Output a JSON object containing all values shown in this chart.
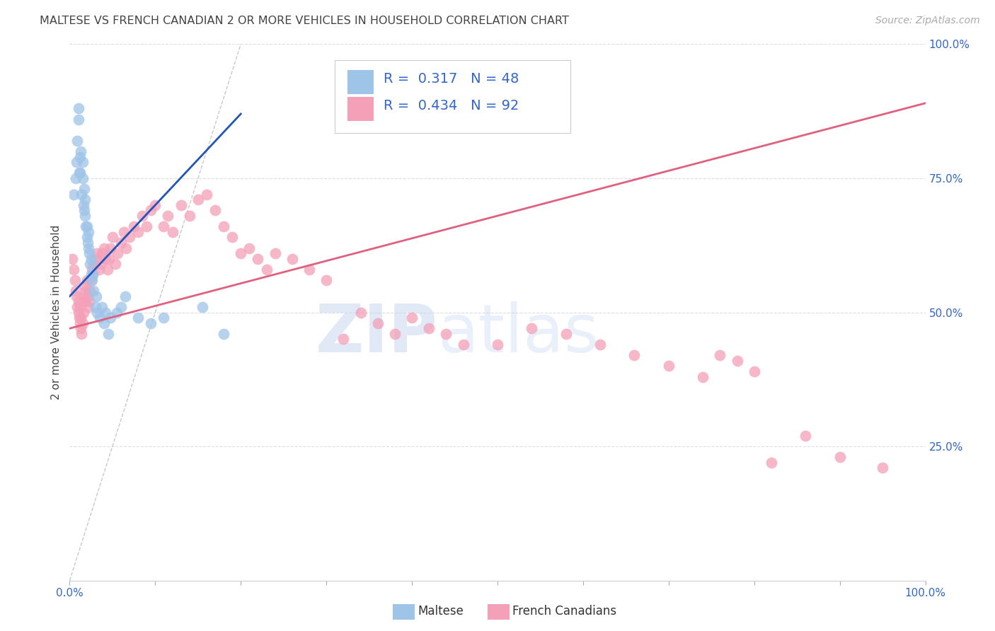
{
  "title": "MALTESE VS FRENCH CANADIAN 2 OR MORE VEHICLES IN HOUSEHOLD CORRELATION CHART",
  "source": "Source: ZipAtlas.com",
  "ylabel": "2 or more Vehicles in Household",
  "xlim": [
    0,
    1
  ],
  "ylim": [
    0,
    1
  ],
  "maltese_R": "0.317",
  "maltese_N": "48",
  "french_R": "0.434",
  "french_N": "92",
  "maltese_color": "#9ec4e8",
  "french_color": "#f4a0b8",
  "maltese_line_color": "#2255bb",
  "french_line_color": "#e06080",
  "diag_line_color": "#bbbbbb",
  "background_color": "#ffffff",
  "grid_color": "#dddddd",
  "title_color": "#333333",
  "source_color": "#aaaaaa",
  "axis_label_color": "#3366cc",
  "watermark_zip": "ZIP",
  "watermark_atlas": "atlas",
  "maltese_x": [
    0.005,
    0.007,
    0.008,
    0.009,
    0.01,
    0.01,
    0.011,
    0.012,
    0.012,
    0.013,
    0.014,
    0.015,
    0.015,
    0.016,
    0.017,
    0.017,
    0.018,
    0.018,
    0.019,
    0.02,
    0.02,
    0.021,
    0.022,
    0.022,
    0.023,
    0.024,
    0.025,
    0.025,
    0.026,
    0.027,
    0.028,
    0.03,
    0.031,
    0.032,
    0.035,
    0.038,
    0.04,
    0.042,
    0.045,
    0.048,
    0.055,
    0.06,
    0.065,
    0.08,
    0.095,
    0.11,
    0.155,
    0.18
  ],
  "maltese_y": [
    0.72,
    0.75,
    0.78,
    0.82,
    0.86,
    0.88,
    0.76,
    0.79,
    0.76,
    0.8,
    0.72,
    0.75,
    0.78,
    0.7,
    0.73,
    0.69,
    0.68,
    0.71,
    0.66,
    0.64,
    0.66,
    0.63,
    0.65,
    0.62,
    0.61,
    0.59,
    0.57,
    0.6,
    0.56,
    0.57,
    0.54,
    0.51,
    0.53,
    0.5,
    0.49,
    0.51,
    0.48,
    0.5,
    0.46,
    0.49,
    0.5,
    0.51,
    0.53,
    0.49,
    0.48,
    0.49,
    0.51,
    0.46
  ],
  "french_x": [
    0.003,
    0.005,
    0.006,
    0.007,
    0.008,
    0.009,
    0.01,
    0.01,
    0.011,
    0.012,
    0.012,
    0.013,
    0.013,
    0.014,
    0.015,
    0.016,
    0.017,
    0.018,
    0.018,
    0.019,
    0.02,
    0.021,
    0.022,
    0.023,
    0.024,
    0.025,
    0.026,
    0.027,
    0.028,
    0.03,
    0.032,
    0.034,
    0.036,
    0.038,
    0.04,
    0.042,
    0.044,
    0.046,
    0.048,
    0.05,
    0.053,
    0.056,
    0.06,
    0.063,
    0.066,
    0.07,
    0.075,
    0.08,
    0.085,
    0.09,
    0.095,
    0.1,
    0.11,
    0.115,
    0.12,
    0.13,
    0.14,
    0.15,
    0.16,
    0.17,
    0.18,
    0.19,
    0.2,
    0.21,
    0.22,
    0.23,
    0.24,
    0.26,
    0.28,
    0.3,
    0.32,
    0.34,
    0.36,
    0.38,
    0.4,
    0.42,
    0.44,
    0.46,
    0.5,
    0.54,
    0.58,
    0.62,
    0.66,
    0.7,
    0.74,
    0.76,
    0.78,
    0.8,
    0.82,
    0.86,
    0.9,
    0.95
  ],
  "french_y": [
    0.6,
    0.58,
    0.56,
    0.54,
    0.53,
    0.51,
    0.5,
    0.52,
    0.49,
    0.51,
    0.48,
    0.47,
    0.49,
    0.46,
    0.48,
    0.5,
    0.53,
    0.55,
    0.52,
    0.54,
    0.56,
    0.53,
    0.51,
    0.52,
    0.54,
    0.56,
    0.58,
    0.57,
    0.59,
    0.6,
    0.61,
    0.58,
    0.59,
    0.61,
    0.62,
    0.6,
    0.58,
    0.6,
    0.62,
    0.64,
    0.59,
    0.61,
    0.63,
    0.65,
    0.62,
    0.64,
    0.66,
    0.65,
    0.68,
    0.66,
    0.69,
    0.7,
    0.66,
    0.68,
    0.65,
    0.7,
    0.68,
    0.71,
    0.72,
    0.69,
    0.66,
    0.64,
    0.61,
    0.62,
    0.6,
    0.58,
    0.61,
    0.6,
    0.58,
    0.56,
    0.45,
    0.5,
    0.48,
    0.46,
    0.49,
    0.47,
    0.46,
    0.44,
    0.44,
    0.47,
    0.46,
    0.44,
    0.42,
    0.4,
    0.38,
    0.42,
    0.41,
    0.39,
    0.22,
    0.27,
    0.23,
    0.21
  ]
}
